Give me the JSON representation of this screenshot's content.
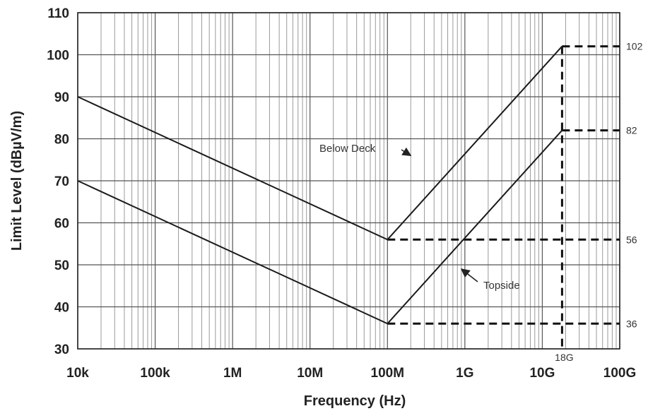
{
  "chart_data": {
    "type": "line",
    "xlabel": "Frequency (Hz)",
    "ylabel": "Limit Level (dBµV/m)",
    "x_scale": "log",
    "xlim": [
      10000,
      100000000000
    ],
    "ylim": [
      30,
      110
    ],
    "x_ticks": [
      {
        "value": 10000,
        "label": "10k"
      },
      {
        "value": 100000,
        "label": "100k"
      },
      {
        "value": 1000000,
        "label": "1M"
      },
      {
        "value": 10000000,
        "label": "10M"
      },
      {
        "value": 100000000,
        "label": "100M"
      },
      {
        "value": 1000000000,
        "label": "1G"
      },
      {
        "value": 10000000000,
        "label": "10G"
      },
      {
        "value": 100000000000,
        "label": "100G"
      }
    ],
    "y_ticks": [
      30,
      40,
      50,
      60,
      70,
      80,
      90,
      100,
      110
    ],
    "grid": true,
    "series": [
      {
        "name": "Below Deck",
        "points": [
          [
            10000,
            90
          ],
          [
            100000000,
            56
          ],
          [
            18000000000,
            102
          ]
        ]
      },
      {
        "name": "Topside",
        "points": [
          [
            10000,
            70
          ],
          [
            100000000,
            36
          ],
          [
            18000000000,
            82
          ]
        ]
      }
    ],
    "reference_lines": [
      {
        "label": "102",
        "y": 102,
        "x_start": 18000000000
      },
      {
        "label": "82",
        "y": 82,
        "x_start": 18000000000
      },
      {
        "label": "56",
        "y": 56,
        "x_start": 100000000
      },
      {
        "label": "36",
        "y": 36,
        "x_start": 100000000
      }
    ],
    "vertical_marker": {
      "label": "18G",
      "x": 18000000000
    },
    "annotations": [
      {
        "text": "Below Deck",
        "series": "Below Deck",
        "arrow_to": [
          200000000,
          76
        ]
      },
      {
        "text": "Topside",
        "series": "Topside",
        "arrow_to": [
          900000000,
          49
        ]
      }
    ]
  }
}
